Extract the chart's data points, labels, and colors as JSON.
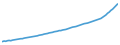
{
  "x": [
    0,
    1,
    2,
    3,
    4,
    5,
    6,
    7,
    8,
    9,
    10,
    11,
    12,
    13,
    14,
    15,
    16,
    17,
    18,
    19,
    20,
    21,
    22,
    23,
    24,
    25,
    26,
    27,
    28,
    29,
    30,
    31,
    32,
    33,
    34,
    35,
    36,
    37,
    38,
    39,
    40,
    41,
    42,
    43,
    44,
    45,
    46,
    47,
    48,
    49,
    50,
    51,
    52,
    53,
    54,
    55,
    56,
    57,
    58,
    59,
    60,
    61,
    62,
    63,
    64,
    65,
    66,
    67,
    68,
    69
  ],
  "y": [
    2,
    3,
    2.5,
    3.5,
    4,
    3.5,
    4.5,
    5,
    5.5,
    6,
    6.5,
    7,
    7,
    8,
    8.5,
    9,
    9.5,
    10,
    10.5,
    11,
    11.5,
    12,
    13,
    13.5,
    14,
    15,
    15.5,
    16,
    17,
    17.5,
    18,
    19,
    19.5,
    20,
    21,
    21,
    22,
    22.5,
    23,
    24,
    25,
    26,
    27,
    27.5,
    28,
    29,
    30,
    31,
    32,
    33,
    33.5,
    34,
    35,
    36,
    37,
    38,
    39,
    40,
    41,
    42,
    44,
    46,
    48,
    51,
    53,
    56,
    58,
    61,
    64,
    67
  ],
  "line_color": "#4a9fd4",
  "line_width": 1.2,
  "background_color": "#ffffff",
  "ylim": [
    0,
    70
  ],
  "xlim": [
    0,
    69
  ]
}
